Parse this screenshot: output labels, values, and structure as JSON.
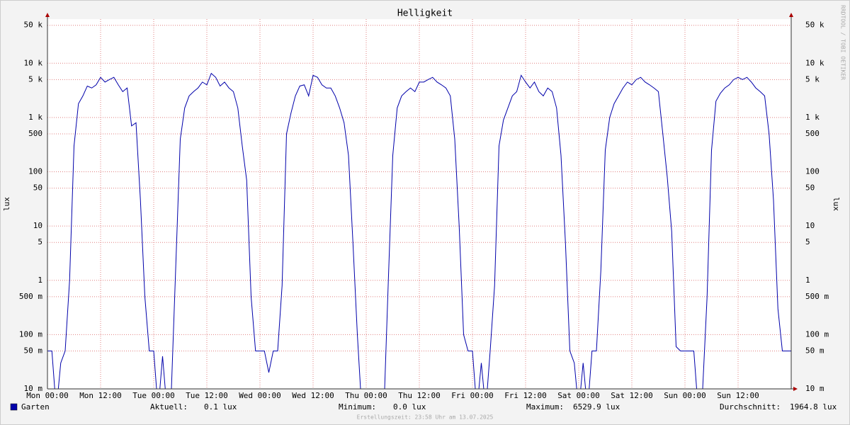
{
  "chart_data": {
    "type": "line",
    "title": "Helligkeit",
    "y_label": "lux",
    "y2_label": "lux",
    "side_text": "RRDTOOL / TOBI OETIKER",
    "footer": "Erstellungszeit: 23:58 Uhr am 13.07.2025",
    "log_y": true,
    "grid": true,
    "xlim": [
      0,
      168
    ],
    "xticks": [
      {
        "value": 0,
        "label": "Mon 00:00"
      },
      {
        "value": 12,
        "label": "Mon 12:00"
      },
      {
        "value": 24,
        "label": "Tue 00:00"
      },
      {
        "value": 36,
        "label": "Tue 12:00"
      },
      {
        "value": 48,
        "label": "Wed 00:00"
      },
      {
        "value": 60,
        "label": "Wed 12:00"
      },
      {
        "value": 72,
        "label": "Thu 00:00"
      },
      {
        "value": 84,
        "label": "Thu 12:00"
      },
      {
        "value": 96,
        "label": "Fri 00:00"
      },
      {
        "value": 108,
        "label": "Fri 12:00"
      },
      {
        "value": 120,
        "label": "Sat 00:00"
      },
      {
        "value": 132,
        "label": "Sat 12:00"
      },
      {
        "value": 144,
        "label": "Sun 00:00"
      },
      {
        "value": 156,
        "label": "Sun 12:00"
      }
    ],
    "ylim": [
      0.01,
      65000
    ],
    "yticks": [
      {
        "value": 0.01,
        "label": "10 m"
      },
      {
        "value": 0.05,
        "label": "50 m"
      },
      {
        "value": 0.1,
        "label": "100 m"
      },
      {
        "value": 0.5,
        "label": "500 m"
      },
      1,
      5,
      10,
      50,
      100,
      500,
      {
        "value": 1000,
        "label": "1 k"
      },
      {
        "value": 5000,
        "label": "5 k"
      },
      {
        "value": 10000,
        "label": "10 k"
      },
      {
        "value": 50000,
        "label": "50 k"
      }
    ],
    "x": [
      0,
      1,
      2,
      3,
      4,
      5,
      6,
      7,
      8,
      9,
      10,
      11,
      12,
      13,
      14,
      15,
      16,
      17,
      18,
      19,
      20,
      21,
      22,
      23,
      24,
      25,
      26,
      27,
      28,
      29,
      30,
      31,
      32,
      33,
      34,
      35,
      36,
      37,
      38,
      39,
      40,
      41,
      42,
      43,
      44,
      45,
      46,
      47,
      48,
      49,
      50,
      51,
      52,
      53,
      54,
      55,
      56,
      57,
      58,
      59,
      60,
      61,
      62,
      63,
      64,
      65,
      66,
      67,
      68,
      69,
      70,
      71,
      72,
      73,
      74,
      75,
      76,
      77,
      78,
      79,
      80,
      81,
      82,
      83,
      84,
      85,
      86,
      87,
      88,
      89,
      90,
      91,
      92,
      93,
      94,
      95,
      96,
      97,
      98,
      99,
      100,
      101,
      102,
      103,
      104,
      105,
      106,
      107,
      108,
      109,
      110,
      111,
      112,
      113,
      114,
      115,
      116,
      117,
      118,
      119,
      120,
      121,
      122,
      123,
      124,
      125,
      126,
      127,
      128,
      129,
      130,
      131,
      132,
      133,
      134,
      135,
      136,
      137,
      138,
      139,
      140,
      141,
      142,
      143,
      144,
      145,
      146,
      147,
      148,
      149,
      150,
      151,
      152,
      153,
      154,
      155,
      156,
      157,
      158,
      159,
      160,
      161,
      162,
      163,
      164,
      165,
      166,
      167,
      168
    ],
    "series": [
      {
        "name": "Garten",
        "color": "#0000aa",
        "values": [
          0.05,
          0.05,
          0,
          0.03,
          0.05,
          1,
          300,
          1800,
          2500,
          3800,
          3500,
          4000,
          5500,
          4500,
          5000,
          5500,
          4000,
          3000,
          3500,
          700,
          800,
          30,
          0.5,
          0.05,
          0.05,
          0,
          0.04,
          0,
          0.01,
          2,
          400,
          1500,
          2500,
          3000,
          3500,
          4500,
          4000,
          6500,
          5500,
          3800,
          4500,
          3500,
          3000,
          1500,
          300,
          70,
          0.5,
          0.05,
          0.05,
          0.05,
          0.02,
          0.05,
          0.05,
          0.8,
          500,
          1200,
          2500,
          3800,
          4000,
          2500,
          6000,
          5500,
          4000,
          3500,
          3500,
          2500,
          1500,
          800,
          200,
          5,
          0.1,
          0,
          0,
          0,
          0,
          0,
          0,
          1,
          200,
          1500,
          2500,
          3000,
          3500,
          3000,
          4500,
          4500,
          5000,
          5500,
          4500,
          4000,
          3500,
          2500,
          400,
          10,
          0.1,
          0.05,
          0.05,
          0,
          0.03,
          0,
          0.05,
          0.8,
          300,
          900,
          1500,
          2500,
          3000,
          6000,
          4500,
          3500,
          4500,
          3000,
          2500,
          3500,
          3000,
          1500,
          200,
          5,
          0.05,
          0.03,
          0,
          0.03,
          0,
          0.05,
          0.05,
          1.5,
          250,
          1000,
          1800,
          2500,
          3500,
          4500,
          4000,
          5000,
          5500,
          4500,
          4000,
          3500,
          3000,
          500,
          80,
          8,
          0.06,
          0.05,
          0.05,
          0.05,
          0.05,
          0,
          0.01,
          0.5,
          250,
          2000,
          2800,
          3500,
          4000,
          5000,
          5500,
          5000,
          5500,
          4500,
          3500,
          3000,
          2500,
          500,
          30,
          0.3,
          0.05,
          0.05,
          0.05
        ]
      }
    ],
    "stats": [
      {
        "label": "Aktuell:",
        "value": "0.1 lux"
      },
      {
        "label": "Minimum:",
        "value": "0.0 lux"
      },
      {
        "label": "Maximum:",
        "value": "6529.9 lux"
      },
      {
        "label": "Durchschnitt:",
        "value": "1964.8 lux"
      }
    ]
  }
}
